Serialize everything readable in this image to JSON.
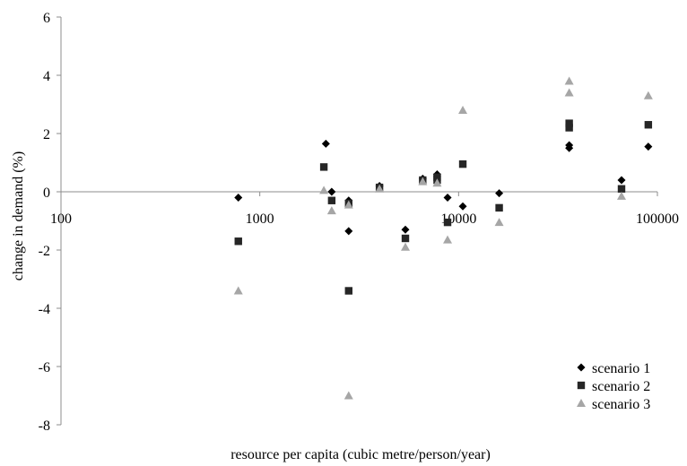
{
  "chart_data": {
    "type": "scatter",
    "title": "",
    "xlabel": "resource per capita (cubic metre/person/year)",
    "ylabel": "change in demand (%)",
    "xscale": "log",
    "xlim": [
      100,
      100000
    ],
    "ylim": [
      -8,
      6
    ],
    "x_ticks": [
      100,
      1000,
      10000,
      100000
    ],
    "x_tick_labels": [
      "100",
      "1000",
      "10000",
      "100000"
    ],
    "y_ticks": [
      -8,
      -6,
      -4,
      -2,
      0,
      2,
      4,
      6
    ],
    "y_tick_labels": [
      "-8",
      "-6",
      "-4",
      "-2",
      "0",
      "2",
      "4",
      "6"
    ],
    "grid": false,
    "legend_position": "bottom-right",
    "series": [
      {
        "name": "scenario 1",
        "marker": "diamond",
        "color": "#000000",
        "points": [
          {
            "x": 780,
            "y": -0.2
          },
          {
            "x": 2150,
            "y": 1.65
          },
          {
            "x": 2300,
            "y": 0.0
          },
          {
            "x": 2800,
            "y": -1.35
          },
          {
            "x": 2800,
            "y": -0.3
          },
          {
            "x": 4000,
            "y": 0.2
          },
          {
            "x": 5400,
            "y": -1.3
          },
          {
            "x": 6600,
            "y": 0.45
          },
          {
            "x": 7800,
            "y": 0.6
          },
          {
            "x": 7800,
            "y": 0.55
          },
          {
            "x": 8800,
            "y": -0.2
          },
          {
            "x": 10500,
            "y": -0.5
          },
          {
            "x": 16000,
            "y": -0.05
          },
          {
            "x": 36000,
            "y": 1.6
          },
          {
            "x": 36000,
            "y": 1.5
          },
          {
            "x": 66000,
            "y": 0.4
          },
          {
            "x": 90000,
            "y": 1.55
          }
        ]
      },
      {
        "name": "scenario 2",
        "marker": "square",
        "color": "#262626",
        "points": [
          {
            "x": 780,
            "y": -1.7
          },
          {
            "x": 2100,
            "y": 0.85
          },
          {
            "x": 2300,
            "y": -0.3
          },
          {
            "x": 2800,
            "y": -3.4
          },
          {
            "x": 2800,
            "y": -0.4
          },
          {
            "x": 4000,
            "y": 0.15
          },
          {
            "x": 5400,
            "y": -1.6
          },
          {
            "x": 6600,
            "y": 0.4
          },
          {
            "x": 7800,
            "y": 0.4
          },
          {
            "x": 7800,
            "y": 0.5
          },
          {
            "x": 8800,
            "y": -1.05
          },
          {
            "x": 10500,
            "y": 0.95
          },
          {
            "x": 16000,
            "y": -0.55
          },
          {
            "x": 36000,
            "y": 2.35
          },
          {
            "x": 36000,
            "y": 2.2
          },
          {
            "x": 66000,
            "y": 0.1
          },
          {
            "x": 90000,
            "y": 2.3
          }
        ]
      },
      {
        "name": "scenario 3",
        "marker": "triangle",
        "color": "#a6a6a6",
        "points": [
          {
            "x": 780,
            "y": -3.4
          },
          {
            "x": 2100,
            "y": 0.05
          },
          {
            "x": 2300,
            "y": -0.65
          },
          {
            "x": 2800,
            "y": -7.0
          },
          {
            "x": 2800,
            "y": -0.45
          },
          {
            "x": 4000,
            "y": 0.1
          },
          {
            "x": 5400,
            "y": -1.9
          },
          {
            "x": 6600,
            "y": 0.35
          },
          {
            "x": 7800,
            "y": 0.3
          },
          {
            "x": 8800,
            "y": -1.65
          },
          {
            "x": 10500,
            "y": 2.8
          },
          {
            "x": 16000,
            "y": -1.05
          },
          {
            "x": 36000,
            "y": 3.8
          },
          {
            "x": 36000,
            "y": 3.4
          },
          {
            "x": 66000,
            "y": -0.15
          },
          {
            "x": 90000,
            "y": 3.3
          }
        ]
      }
    ]
  }
}
